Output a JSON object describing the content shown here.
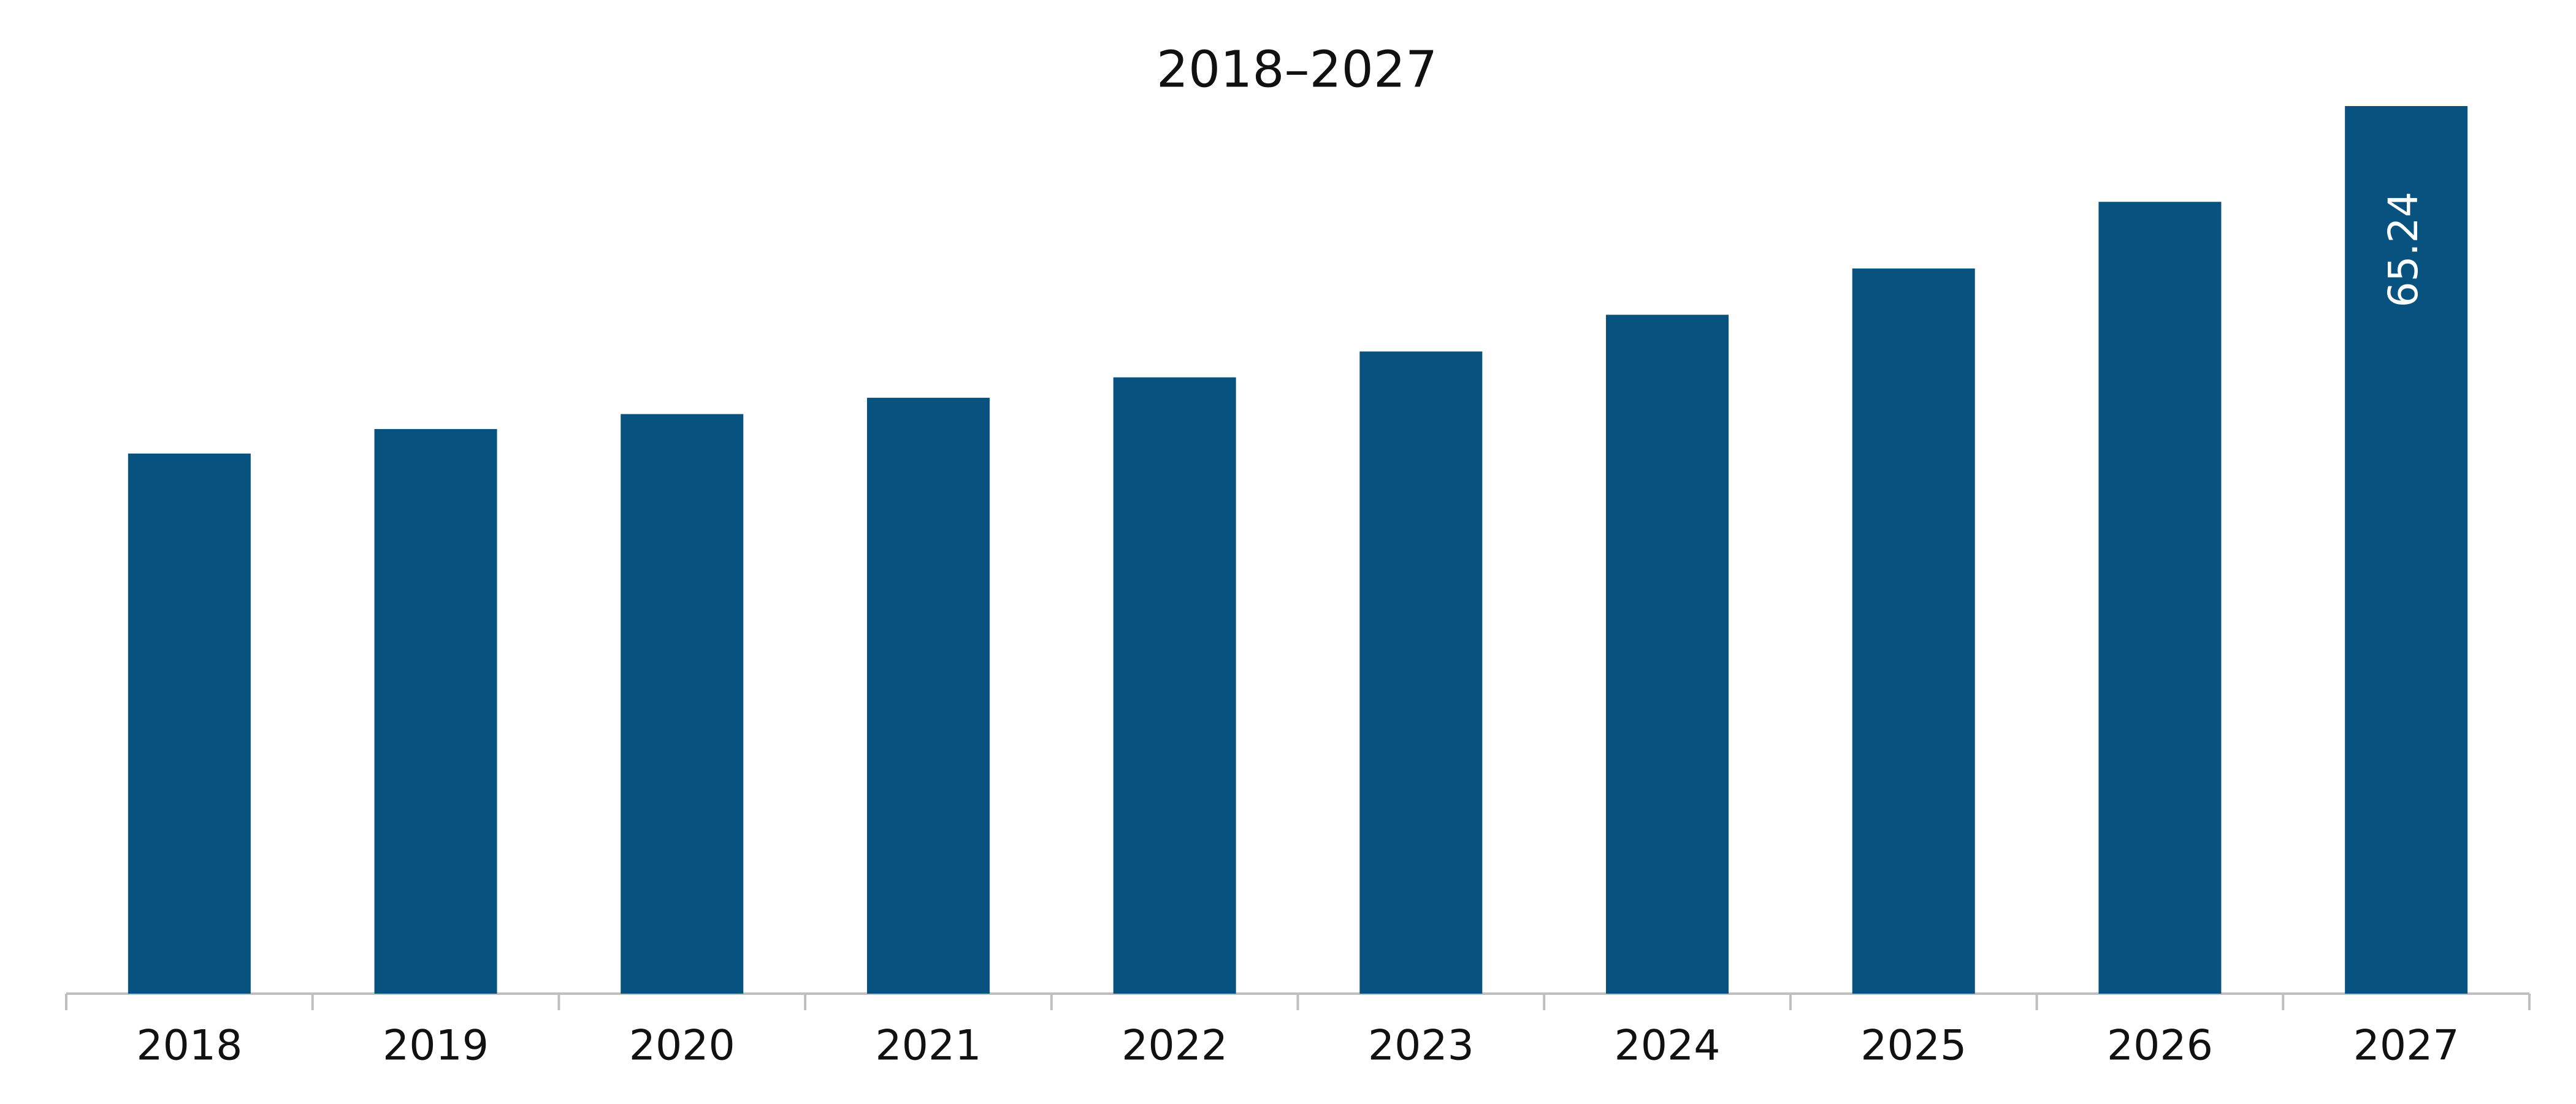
{
  "chart_data": {
    "type": "bar",
    "title": "2018–2027",
    "categories": [
      "2018",
      "2019",
      "2020",
      "2021",
      "2022",
      "2023",
      "2024",
      "2025",
      "2026",
      "2027"
    ],
    "values": [
      39.7,
      41.5,
      42.6,
      43.8,
      45.3,
      47.2,
      49.9,
      53.3,
      58.2,
      65.24
    ],
    "value_labels": [
      null,
      null,
      null,
      null,
      null,
      null,
      null,
      null,
      null,
      "65.24"
    ],
    "color": "#08527f"
  }
}
